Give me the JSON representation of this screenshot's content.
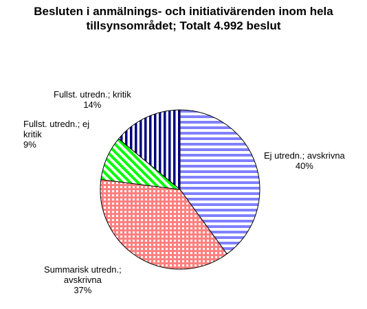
{
  "chart_data": {
    "type": "pie",
    "title_lines": [
      "Besluten i anmälnings- och initiativärenden inom hela",
      "tillsynsområdet; Totalt 4.992 beslut"
    ],
    "slices": [
      {
        "label_lines": [
          "Ej utredn.; avskrivna"
        ],
        "percent_text": "40%",
        "value": 40,
        "color": "#8080ff",
        "pattern": "horizontal-stripes"
      },
      {
        "label_lines": [
          "Summarisk utredn.;",
          "avskrivna"
        ],
        "percent_text": "37%",
        "value": 37,
        "color": "#ff8080",
        "pattern": "grid"
      },
      {
        "label_lines": [
          "Fullst. utredn.; ej",
          "kritik"
        ],
        "percent_text": "9%",
        "value": 9,
        "color": "#00ff00",
        "pattern": "diagonal-stripes"
      },
      {
        "label_lines": [
          "Fullst. utredn.; kritik"
        ],
        "percent_text": "14%",
        "value": 14,
        "color": "#000080",
        "pattern": "vertical-stripes"
      }
    ],
    "legend": "none"
  }
}
